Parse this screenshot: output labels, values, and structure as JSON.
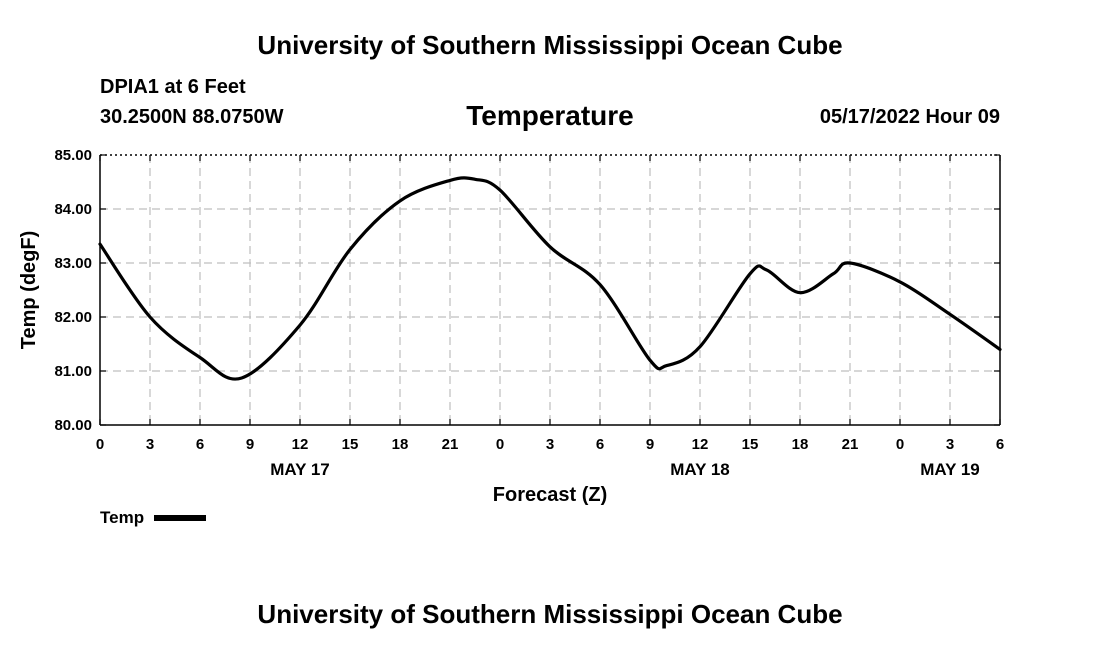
{
  "header": {
    "title": "University of Southern Mississippi Ocean Cube",
    "station": "DPIA1 at 6 Feet",
    "coords": "30.2500N  88.0750W",
    "datetime": "05/17/2022 Hour 09"
  },
  "footer": {
    "title": "University of Southern Mississippi Ocean Cube"
  },
  "chart_data": {
    "type": "line",
    "title": "Temperature",
    "xlabel": "Forecast (Z)",
    "ylabel": "Temp (degF)",
    "ylim": [
      80,
      85
    ],
    "yticks": [
      "80.00",
      "81.00",
      "82.00",
      "83.00",
      "84.00",
      "85.00"
    ],
    "xlim": [
      0,
      54
    ],
    "xticks": [
      0,
      3,
      6,
      9,
      12,
      15,
      18,
      21,
      24,
      27,
      30,
      33,
      36,
      39,
      42,
      45,
      48,
      51,
      54
    ],
    "xtick_labels": [
      "0",
      "3",
      "6",
      "9",
      "12",
      "15",
      "18",
      "21",
      "0",
      "3",
      "6",
      "9",
      "12",
      "15",
      "18",
      "21",
      "0",
      "3",
      "6"
    ],
    "date_labels": [
      {
        "x": 12,
        "label": "MAY 17"
      },
      {
        "x": 36,
        "label": "MAY 18"
      },
      {
        "x": 51,
        "label": "MAY 19"
      }
    ],
    "grid": true,
    "legend": "bottom-left",
    "colors": {
      "line": "#000000",
      "grid": "#bfbfbf"
    },
    "series": [
      {
        "name": "Temp",
        "x": [
          0,
          3,
          6,
          8.5,
          12,
          15,
          18,
          21,
          22.5,
          24,
          27,
          30,
          33,
          34,
          36,
          39,
          40,
          42,
          44,
          45,
          48,
          51,
          54
        ],
        "y": [
          83.35,
          82.0,
          81.25,
          80.87,
          81.85,
          83.25,
          84.15,
          84.53,
          84.55,
          84.35,
          83.3,
          82.6,
          81.2,
          81.1,
          81.45,
          82.8,
          82.87,
          82.45,
          82.8,
          83.0,
          82.65,
          82.05,
          81.4
        ]
      }
    ]
  }
}
